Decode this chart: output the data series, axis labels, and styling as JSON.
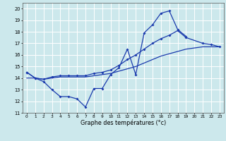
{
  "xlabel": "Graphe des températures (°c)",
  "bg_color": "#cce8ec",
  "grid_color": "#ffffff",
  "line_color": "#1a3aad",
  "ylim": [
    11,
    20.5
  ],
  "xlim": [
    -0.5,
    23.5
  ],
  "yticks": [
    11,
    12,
    13,
    14,
    15,
    16,
    17,
    18,
    19,
    20
  ],
  "xticks": [
    0,
    1,
    2,
    3,
    4,
    5,
    6,
    7,
    8,
    9,
    10,
    11,
    12,
    13,
    14,
    15,
    16,
    17,
    18,
    19,
    20,
    21,
    22,
    23
  ],
  "line1_x": [
    0,
    1,
    2,
    3,
    4,
    5,
    6,
    7,
    8,
    9,
    10,
    11,
    12,
    13,
    14,
    15,
    16,
    17,
    18,
    19
  ],
  "line1_y": [
    14.5,
    14.0,
    13.7,
    13.0,
    12.4,
    12.4,
    12.2,
    11.5,
    13.1,
    13.1,
    14.3,
    14.9,
    16.5,
    14.3,
    17.9,
    18.6,
    19.6,
    19.8,
    18.2,
    17.6
  ],
  "line2_x": [
    0,
    1,
    2,
    3,
    4,
    5,
    6,
    7,
    8,
    9,
    10,
    11,
    12,
    13,
    14,
    15,
    16,
    17,
    18,
    19,
    20,
    21,
    22,
    23
  ],
  "line2_y": [
    14.0,
    14.0,
    13.9,
    14.0,
    14.1,
    14.1,
    14.1,
    14.1,
    14.2,
    14.3,
    14.4,
    14.6,
    14.8,
    15.0,
    15.3,
    15.6,
    15.9,
    16.1,
    16.3,
    16.5,
    16.6,
    16.7,
    16.7,
    16.7
  ],
  "line3_x": [
    0,
    1,
    2,
    3,
    4,
    5,
    6,
    7,
    8,
    9,
    10,
    11,
    12,
    13,
    14,
    15,
    16,
    17,
    18,
    19,
    21,
    22,
    23
  ],
  "line3_y": [
    14.5,
    14.0,
    13.9,
    14.1,
    14.2,
    14.2,
    14.2,
    14.2,
    14.4,
    14.5,
    14.7,
    15.1,
    15.6,
    16.0,
    16.5,
    17.0,
    17.4,
    17.7,
    18.1,
    17.5,
    17.0,
    16.9,
    16.7
  ]
}
